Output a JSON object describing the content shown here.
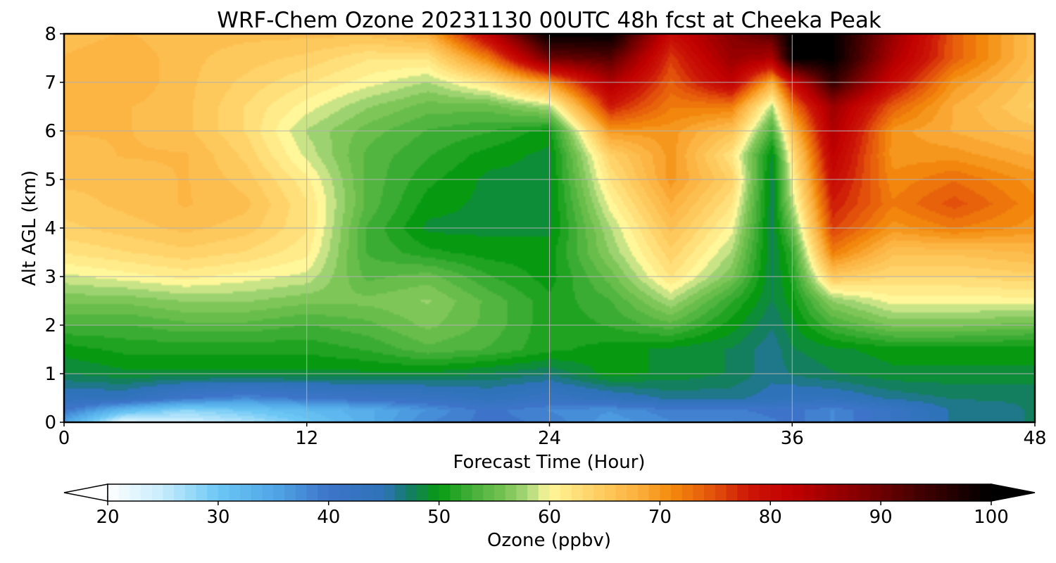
{
  "chart_data": {
    "type": "heatmap",
    "title": "WRF-Chem Ozone  20231130 00UTC 48h fcst at Cheeka Peak",
    "xlabel": "Forecast Time (Hour)",
    "ylabel": "Alt AGL (km)",
    "xlim": [
      0,
      48
    ],
    "ylim": [
      0,
      8
    ],
    "x_ticks": [
      "0",
      "12",
      "24",
      "36",
      "48"
    ],
    "y_ticks": [
      "0",
      "1",
      "2",
      "3",
      "4",
      "5",
      "6",
      "7",
      "8"
    ],
    "grid": true,
    "x_hours": [
      0,
      3,
      6,
      9,
      12,
      15,
      18,
      21,
      24,
      27,
      30,
      33,
      35,
      36,
      38,
      41,
      44,
      48
    ],
    "y_km": [
      0,
      0.25,
      0.5,
      1,
      1.5,
      2,
      2.5,
      3,
      3.5,
      4,
      4.5,
      5,
      5.5,
      6,
      6.5,
      7,
      7.5,
      8
    ],
    "ozone_ppbv": [
      [
        35,
        22,
        24,
        26,
        30,
        34,
        38,
        40,
        39,
        36,
        38,
        38,
        39,
        40,
        38,
        42,
        46,
        47
      ],
      [
        40,
        32,
        28,
        30,
        32,
        34,
        37,
        40,
        38,
        37,
        39,
        39,
        40,
        40,
        38,
        42,
        46,
        47
      ],
      [
        44,
        44,
        40,
        38,
        40,
        41,
        42,
        44,
        42,
        44,
        46,
        46,
        45,
        44,
        44,
        46,
        47,
        47
      ],
      [
        48,
        49,
        49,
        49,
        49,
        49,
        49,
        48,
        47,
        50,
        49,
        48,
        46,
        47,
        48,
        49,
        49,
        49
      ],
      [
        50,
        51,
        51,
        51,
        51,
        52,
        54,
        53,
        51,
        50,
        49,
        48,
        46,
        48,
        49,
        50,
        50,
        50
      ],
      [
        53,
        53,
        54,
        54,
        53,
        54,
        56,
        54,
        51,
        52,
        54,
        50,
        47,
        49,
        53,
        56,
        56,
        55
      ],
      [
        56,
        56,
        57,
        57,
        56,
        56,
        57,
        54,
        51,
        53,
        58,
        52,
        48,
        50,
        57,
        60,
        60,
        60
      ],
      [
        59,
        60,
        61,
        60,
        59,
        54,
        55,
        52,
        50,
        55,
        62,
        56,
        48,
        51,
        65,
        63,
        63,
        64
      ],
      [
        62,
        63,
        64,
        63,
        61,
        53,
        51,
        50,
        50,
        57,
        64,
        58,
        48,
        52,
        72,
        66,
        66,
        67
      ],
      [
        64,
        65,
        66,
        65,
        62,
        53,
        49,
        49,
        49,
        58,
        66,
        60,
        48,
        55,
        76,
        70,
        72,
        70
      ],
      [
        65,
        66,
        67,
        66,
        62,
        54,
        50,
        49,
        49,
        60,
        68,
        62,
        48,
        58,
        78,
        72,
        75,
        71
      ],
      [
        66,
        66,
        67,
        65,
        61,
        54,
        51,
        49,
        49,
        62,
        70,
        64,
        48,
        60,
        80,
        71,
        73,
        70
      ],
      [
        66,
        67,
        67,
        64,
        59,
        54,
        52,
        50,
        49,
        64,
        70,
        62,
        49,
        62,
        82,
        70,
        70,
        68
      ],
      [
        67,
        67,
        66,
        63,
        58,
        55,
        53,
        52,
        50,
        70,
        70,
        66,
        53,
        66,
        84,
        70,
        68,
        66
      ],
      [
        67,
        67,
        66,
        63,
        60,
        57,
        55,
        55,
        58,
        78,
        72,
        72,
        58,
        72,
        86,
        74,
        68,
        64
      ],
      [
        67,
        68,
        66,
        64,
        62,
        60,
        58,
        62,
        70,
        84,
        74,
        82,
        68,
        80,
        95,
        80,
        70,
        65
      ],
      [
        67,
        68,
        66,
        65,
        64,
        62,
        62,
        72,
        90,
        92,
        76,
        86,
        84,
        100,
        100,
        84,
        74,
        66
      ],
      [
        66,
        67,
        66,
        66,
        66,
        66,
        68,
        82,
        100,
        100,
        80,
        88,
        92,
        100,
        100,
        86,
        74,
        66
      ]
    ],
    "colorbar": {
      "label": "Ozone  (ppbv)",
      "min": 20,
      "max": 100,
      "ticks": [
        "20",
        "30",
        "40",
        "50",
        "60",
        "70",
        "80",
        "90",
        "100"
      ],
      "extend": "both"
    },
    "colormap": [
      [
        20,
        "#ffffff"
      ],
      [
        25,
        "#c6ecfd"
      ],
      [
        30,
        "#6cc7f5"
      ],
      [
        35,
        "#51a7e6"
      ],
      [
        40,
        "#3d74c9"
      ],
      [
        45,
        "#2e73b9"
      ],
      [
        47,
        "#167a6e"
      ],
      [
        50,
        "#079a11"
      ],
      [
        53,
        "#45b03a"
      ],
      [
        56,
        "#79c353"
      ],
      [
        58,
        "#a8d87a"
      ],
      [
        60,
        "#fff79a"
      ],
      [
        64,
        "#ffd166"
      ],
      [
        68,
        "#fbb03e"
      ],
      [
        71,
        "#f48b0d"
      ],
      [
        75,
        "#e2500b"
      ],
      [
        78,
        "#cc1607"
      ],
      [
        82,
        "#c10000"
      ],
      [
        88,
        "#850000"
      ],
      [
        94,
        "#3d0000"
      ],
      [
        100,
        "#000000"
      ]
    ]
  }
}
